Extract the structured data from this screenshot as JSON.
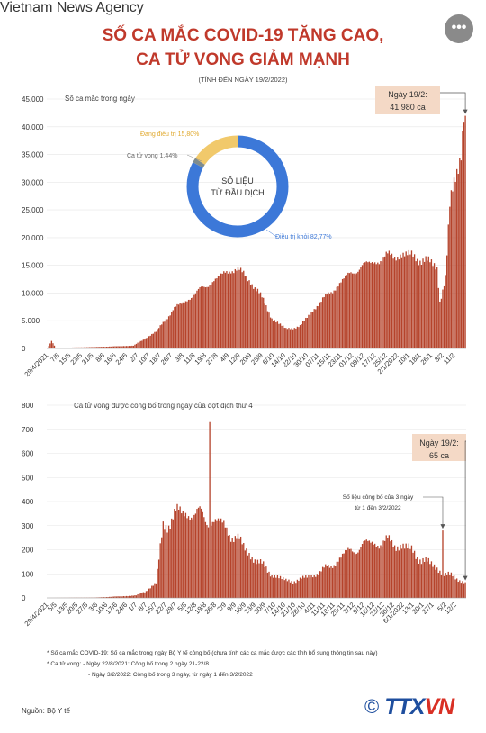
{
  "header": {
    "title_line1": "SỐ CA MẮC COVID-19 TĂNG CAO,",
    "title_line2": "CA TỬ VONG GIẢM MẠNH",
    "subtitle": "(TÍNH ĐẾN NGÀY 19/2/2022)",
    "menu_label": "•••"
  },
  "chart_data": [
    {
      "type": "bar",
      "title": "Số ca mắc trong ngày",
      "ylim": [
        0,
        45000
      ],
      "yticks": [
        0,
        5000,
        10000,
        15000,
        20000,
        25000,
        30000,
        35000,
        40000,
        45000
      ],
      "ytick_labels": [
        "0",
        "5.000",
        "10.000",
        "15.000",
        "20.000",
        "25.000",
        "30.000",
        "35.000",
        "40.000",
        "45.000"
      ],
      "x_labels": [
        "29/4/2021",
        "7/5",
        "15/5",
        "23/5",
        "31/5",
        "8/6",
        "16/6",
        "24/6",
        "2/7",
        "10/7",
        "18/7",
        "26/7",
        "3/8",
        "11/8",
        "19/8",
        "27/8",
        "4/9",
        "12/9",
        "20/9",
        "28/9",
        "6/10",
        "14/10",
        "22/10",
        "30/10",
        "07/11",
        "15/11",
        "23/11",
        "01/12",
        "09/12",
        "17/12",
        "25/12",
        "2/1/2022",
        "10/1",
        "18/1",
        "26/1",
        "3/2",
        "11/2"
      ],
      "x_start": "29/4/2021",
      "x_end": "19/2/2022",
      "keypoints": [
        {
          "date": "29/4/2021",
          "value": 0
        },
        {
          "date": "2/5",
          "value": 1300
        },
        {
          "date": "5/5",
          "value": 100
        },
        {
          "date": "1/6",
          "value": 250
        },
        {
          "date": "29/6",
          "value": 500
        },
        {
          "date": "15/7",
          "value": 3000
        },
        {
          "date": "27/7",
          "value": 7000
        },
        {
          "date": "10/8",
          "value": 9500
        },
        {
          "date": "20/8",
          "value": 11500
        },
        {
          "date": "30/8",
          "value": 13000
        },
        {
          "date": "6/9",
          "value": 14500
        },
        {
          "date": "15/9",
          "value": 13500
        },
        {
          "date": "25/9",
          "value": 10500
        },
        {
          "date": "5/10",
          "value": 5500
        },
        {
          "date": "15/10",
          "value": 3500
        },
        {
          "date": "25/10",
          "value": 4000
        },
        {
          "date": "5/11",
          "value": 7500
        },
        {
          "date": "15/11",
          "value": 10000
        },
        {
          "date": "25/11",
          "value": 12500
        },
        {
          "date": "5/12",
          "value": 14500
        },
        {
          "date": "15/12",
          "value": 15500
        },
        {
          "date": "25/12",
          "value": 16500
        },
        {
          "date": "5/1/2022",
          "value": 17000
        },
        {
          "date": "15/1",
          "value": 16500
        },
        {
          "date": "25/1",
          "value": 15500
        },
        {
          "date": "30/1",
          "value": 14500
        },
        {
          "date": "1/2",
          "value": 8500
        },
        {
          "date": "5/2",
          "value": 13000
        },
        {
          "date": "8/2",
          "value": 25000
        },
        {
          "date": "12/2",
          "value": 31000
        },
        {
          "date": "16/2",
          "value": 36000
        },
        {
          "date": "18/2",
          "value": 42500
        },
        {
          "date": "19/2",
          "value": 41980
        }
      ],
      "annotation": {
        "line1": "Ngày 19/2:",
        "line2": "41.980 ca"
      },
      "donut": {
        "center_line1": "SỐ LIỆU",
        "center_line2": "TỪ ĐẦU DỊCH",
        "slices": [
          {
            "label": "Điều trị khỏi 82,77%",
            "value": 82.77,
            "color": "#3c78d8"
          },
          {
            "label": "Đang điều trị 15,80%",
            "value": 15.8,
            "color": "#f1c96b"
          },
          {
            "label": "Ca tử vong 1,44%",
            "value": 1.44,
            "color": "#7f8c8d"
          }
        ]
      },
      "bar_color": "#b5432b"
    },
    {
      "type": "bar",
      "title": "Ca tử vong được công bố trong ngày của đợt dịch thứ 4",
      "ylim": [
        0,
        800
      ],
      "yticks": [
        0,
        100,
        200,
        300,
        400,
        500,
        600,
        700,
        800
      ],
      "ytick_labels": [
        "0",
        "100",
        "200",
        "300",
        "400",
        "500",
        "600",
        "700",
        "800"
      ],
      "x_labels": [
        "29/4/2021",
        "5/5",
        "13/5",
        "20/5",
        "27/5",
        "3/6",
        "10/6",
        "17/6",
        "24/6",
        "1/7",
        "8/7",
        "15/7",
        "22/7",
        "29/7",
        "5/8",
        "12/8",
        "19/8",
        "26/8",
        "2/9",
        "9/9",
        "16/9",
        "23/9",
        "30/9",
        "7/10",
        "14/10",
        "21/10",
        "28/10",
        "4/11",
        "11/11",
        "18/11",
        "25/11",
        "2/12",
        "9/12",
        "16/12",
        "23/12",
        "30/12",
        "6/1/2022",
        "13/1",
        "20/1",
        "27/1",
        "5/2",
        "12/2"
      ],
      "x_start": "29/4/2021",
      "x_end": "19/2/2022",
      "keypoints": [
        {
          "date": "29/4/2021",
          "value": 0
        },
        {
          "date": "1/6",
          "value": 1
        },
        {
          "date": "1/7",
          "value": 10
        },
        {
          "date": "8/7",
          "value": 30
        },
        {
          "date": "15/7",
          "value": 60
        },
        {
          "date": "20/7",
          "value": 300
        },
        {
          "date": "25/7",
          "value": 330
        },
        {
          "date": "5/8",
          "value": 360
        },
        {
          "date": "15/8",
          "value": 340
        },
        {
          "date": "25/8",
          "value": 320
        },
        {
          "date": "5/9",
          "value": 280
        },
        {
          "date": "15/9",
          "value": 210
        },
        {
          "date": "25/9",
          "value": 150
        },
        {
          "date": "5/10",
          "value": 100
        },
        {
          "date": "15/10",
          "value": 70
        },
        {
          "date": "25/10",
          "value": 75
        },
        {
          "date": "5/11",
          "value": 100
        },
        {
          "date": "15/11",
          "value": 130
        },
        {
          "date": "25/11",
          "value": 180
        },
        {
          "date": "5/12",
          "value": 210
        },
        {
          "date": "15/12",
          "value": 230
        },
        {
          "date": "25/12",
          "value": 230
        },
        {
          "date": "5/1/2022",
          "value": 220
        },
        {
          "date": "15/1",
          "value": 180
        },
        {
          "date": "25/1",
          "value": 140
        },
        {
          "date": "5/2",
          "value": 100
        },
        {
          "date": "19/2",
          "value": 65
        }
      ],
      "spikes": [
        {
          "date": "22/8",
          "value": 730
        },
        {
          "date": "3/2",
          "value": 280
        }
      ],
      "annotation": {
        "line1": "Ngày 19/2:",
        "line2": "65 ca"
      },
      "note": {
        "line1": "Số liệu công bố của 3 ngày",
        "line2": "từ 1 đến 3/2/2022"
      },
      "bar_color": "#b5432b"
    }
  ],
  "footnotes": {
    "line1": "* Số ca mắc COVID-19: Số ca mắc trong ngày Bộ Y tế công bố (chưa tính các ca mắc được các tỉnh bổ sung thông tin sau này)",
    "line2": "* Ca tử vong: - Ngày 22/8/2021: Công bố trong 2 ngày 21-22/8",
    "line3": "- Ngày 3/2/2022: Công bố trong 3 ngày, từ ngày 1 đến 3/2/2022"
  },
  "source": "Nguồn: Bộ Y tế",
  "logo": {
    "copyright": "©",
    "brand_a": "TTX",
    "brand_b": "VN",
    "tagline": "Vietnam News Agency"
  }
}
